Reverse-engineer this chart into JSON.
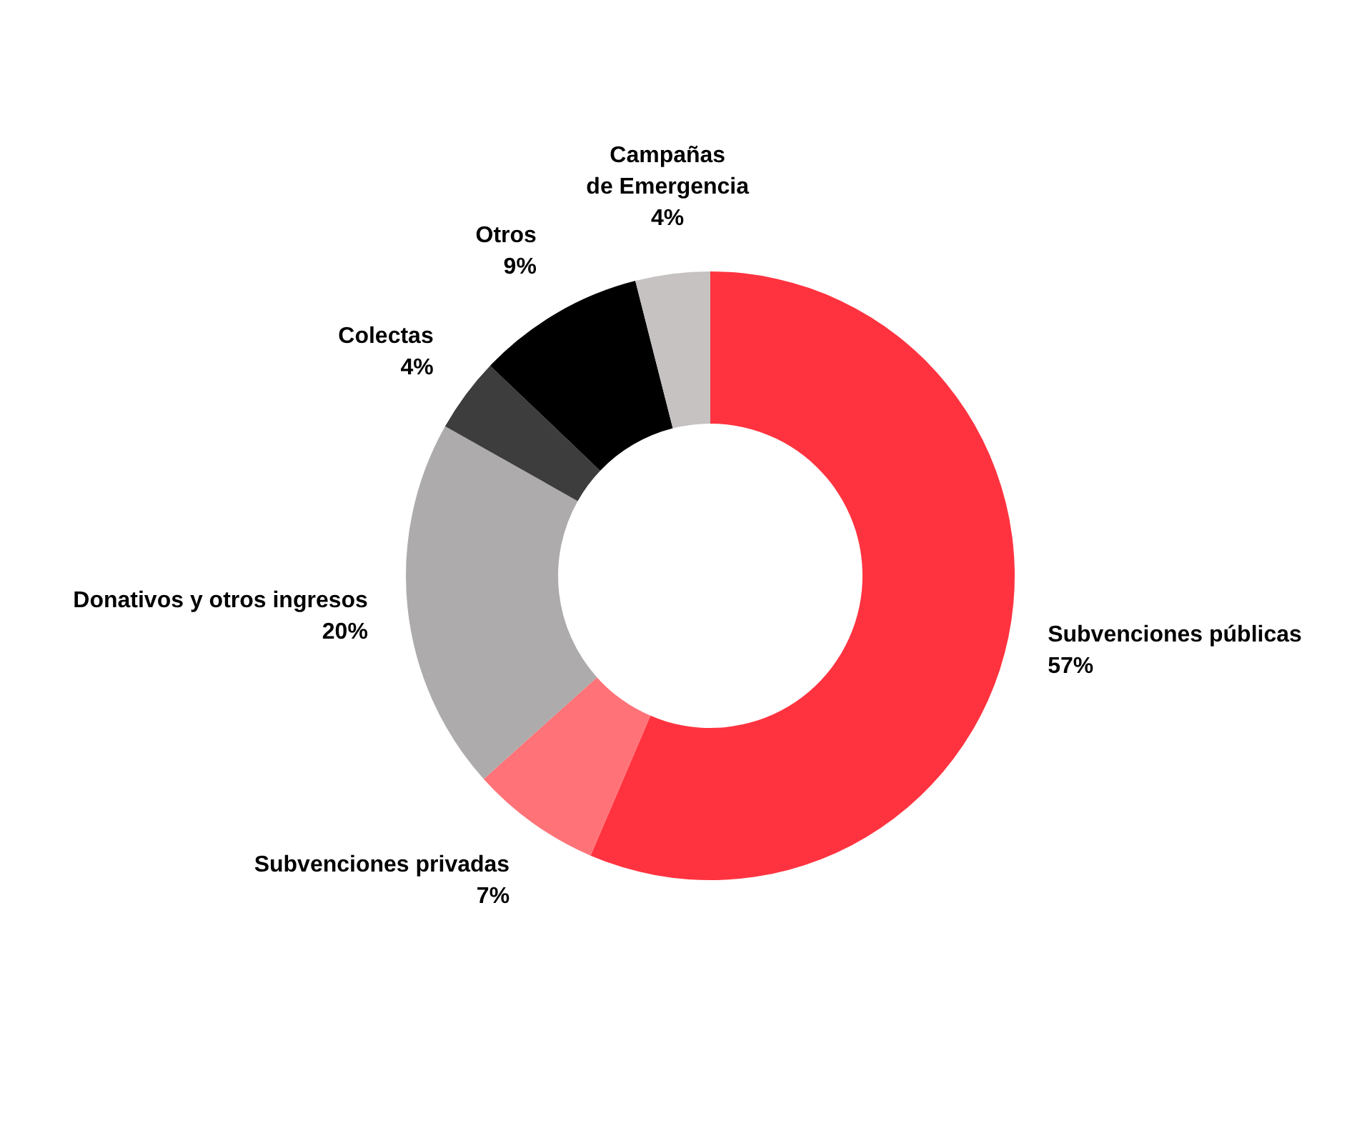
{
  "chart_data": {
    "type": "donut",
    "categories": [
      "Subvenciones públicas",
      "Subvenciones privadas",
      "Donativos y otros ingresos",
      "Colectas",
      "Otros",
      "Campañas\nde Emergencia"
    ],
    "values": [
      57,
      7,
      20,
      4,
      9,
      4
    ],
    "value_labels": [
      "57%",
      "7%",
      "20%",
      "4%",
      "9%",
      "4%"
    ],
    "colors": [
      "#ff333f",
      "#ff7378",
      "#adabab",
      "#3d3d3d",
      "#000000",
      "#c6c2c2"
    ],
    "legend": false
  }
}
